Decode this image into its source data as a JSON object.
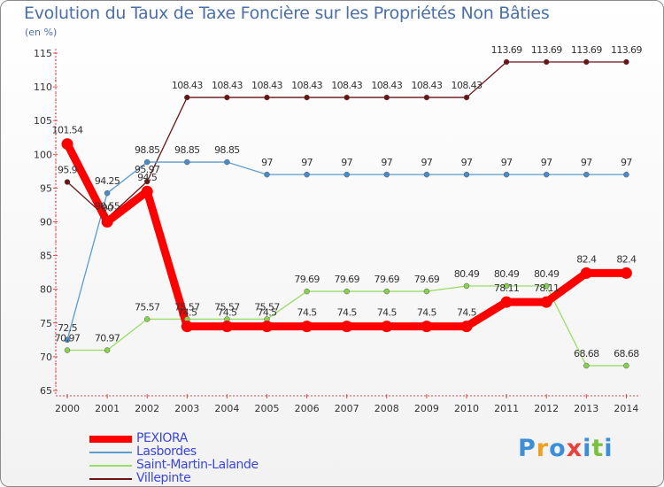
{
  "chart_data": {
    "type": "line",
    "title": "Evolution du Taux de Taxe Foncière sur les Propriétés Non Bâties",
    "ylabel": "(en %)",
    "xlabel": "",
    "ylim": [
      65,
      115
    ],
    "yticks": [
      "65",
      "70",
      "75",
      "80",
      "85",
      "90",
      "95",
      "100",
      "105",
      "110",
      "115"
    ],
    "categories": [
      "2000",
      "2001",
      "2002",
      "2003",
      "2004",
      "2005",
      "2006",
      "2007",
      "2008",
      "2009",
      "2010",
      "2011",
      "2012",
      "2013",
      "2014"
    ],
    "grid": false,
    "series": [
      {
        "name": "Villepinte",
        "color": "#6b1414",
        "marker": "#6b1414",
        "values": [
          95.9,
          90.55,
          95.97,
          108.43,
          108.43,
          108.43,
          108.43,
          108.43,
          108.43,
          108.43,
          108.43,
          113.69,
          113.69,
          113.69,
          113.69
        ],
        "labels": [
          "95.9",
          "90.55",
          "95.97",
          "108.43",
          "108.43",
          "108.43",
          "108.43",
          "108.43",
          "108.43",
          "108.43",
          "108.43",
          "113.69",
          "113.69",
          "113.69",
          "113.69"
        ]
      },
      {
        "name": "Lasbordes",
        "color": "#5a9bd0",
        "marker": "#4a8cc8",
        "values": [
          72.5,
          94.25,
          98.85,
          98.85,
          98.85,
          97,
          97,
          97,
          97,
          97,
          97,
          97,
          97,
          97,
          97
        ],
        "labels": [
          "72.5",
          "94.25",
          "98.85",
          "98.85",
          "98.85",
          "97",
          "97",
          "97",
          "97",
          "97",
          "97",
          "97",
          "97",
          "97",
          "97"
        ]
      },
      {
        "name": "Saint-Martin-Lalande",
        "color": "#99dd66",
        "marker": "#88d050",
        "values": [
          70.97,
          70.97,
          75.57,
          75.57,
          75.57,
          75.57,
          79.69,
          79.69,
          79.69,
          79.69,
          80.49,
          80.49,
          80.49,
          68.68,
          68.68
        ],
        "labels": [
          "70.97",
          "70.97",
          "75.57",
          "75.57",
          "75.57",
          "75.57",
          "79.69",
          "79.69",
          "79.69",
          "79.69",
          "80.49",
          "80.49",
          "80.49",
          "68.68",
          "68.68"
        ]
      },
      {
        "name": "PEXIORA",
        "color": "#ff0000",
        "marker": "#ff0000",
        "values": [
          101.54,
          90,
          94.5,
          74.5,
          74.5,
          74.5,
          74.5,
          74.5,
          74.5,
          74.5,
          74.5,
          78.11,
          78.11,
          82.4,
          82.4
        ],
        "labels": [
          "101.54",
          "90",
          "94.5",
          "74.5",
          "74.5",
          "74.5",
          "74.5",
          "74.5",
          "74.5",
          "74.5",
          "74.5",
          "78.11",
          "78.11",
          "82.4",
          "82.4"
        ]
      }
    ]
  },
  "legend": [
    {
      "name": "PEXIORA",
      "color": "#ff0000"
    },
    {
      "name": "Lasbordes",
      "color": "#5a9bd0"
    },
    {
      "name": "Saint-Martin-Lalande",
      "color": "#99dd66"
    },
    {
      "name": "Villepinte",
      "color": "#6b1414"
    }
  ],
  "logo": {
    "text": "Proxiti",
    "letters": [
      "P",
      "r",
      "o",
      "x",
      "i",
      "t",
      "i"
    ],
    "colors": [
      "#3a8fd8",
      "#f0a020",
      "#3a8fd8",
      "#e8403a",
      "#3a8fd8",
      "#7cc040",
      "#3a8fd8"
    ]
  }
}
